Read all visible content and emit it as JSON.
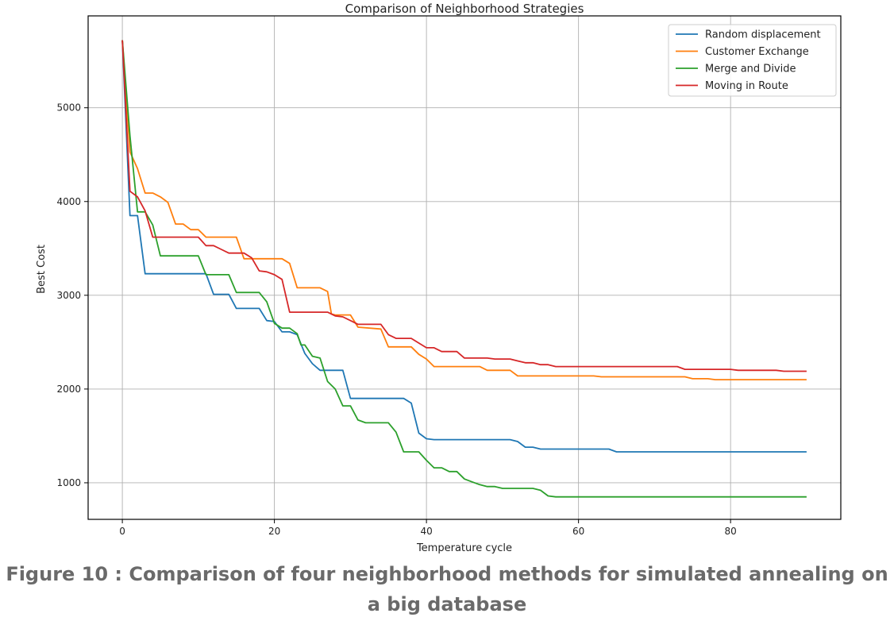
{
  "caption": "Figure 10 : Comparison of four neighborhood methods for simulated annealing on a big database",
  "chart_data": {
    "type": "line",
    "title": "Comparison of Neighborhood Strategies",
    "xlabel": "Temperature cycle",
    "ylabel": "Best Cost",
    "xlim": [
      -4.5,
      94.5
    ],
    "ylim": [
      610,
      5980
    ],
    "xticks": [
      0,
      20,
      40,
      60,
      80
    ],
    "yticks": [
      1000,
      2000,
      3000,
      4000,
      5000
    ],
    "grid": true,
    "legend_position": "top-right",
    "series": [
      {
        "name": "Random displacement",
        "color": "#1f77b4",
        "points": [
          [
            0,
            5720
          ],
          [
            1,
            3850
          ],
          [
            2,
            3850
          ],
          [
            3,
            3230
          ],
          [
            11,
            3230
          ],
          [
            12,
            3010
          ],
          [
            14,
            3010
          ],
          [
            15,
            2860
          ],
          [
            18,
            2860
          ],
          [
            19,
            2730
          ],
          [
            20,
            2720
          ],
          [
            21,
            2610
          ],
          [
            22,
            2610
          ],
          [
            23,
            2580
          ],
          [
            24,
            2380
          ],
          [
            25,
            2270
          ],
          [
            26,
            2200
          ],
          [
            29,
            2200
          ],
          [
            30,
            1900
          ],
          [
            37,
            1900
          ],
          [
            38,
            1850
          ],
          [
            39,
            1530
          ],
          [
            40,
            1470
          ],
          [
            41,
            1460
          ],
          [
            51,
            1460
          ],
          [
            52,
            1440
          ],
          [
            53,
            1380
          ],
          [
            54,
            1380
          ],
          [
            55,
            1360
          ],
          [
            64,
            1360
          ],
          [
            65,
            1330
          ],
          [
            90,
            1330
          ]
        ]
      },
      {
        "name": "Customer Exchange",
        "color": "#ff7f0e",
        "points": [
          [
            0,
            5720
          ],
          [
            1,
            4530
          ],
          [
            2,
            4350
          ],
          [
            3,
            4090
          ],
          [
            4,
            4090
          ],
          [
            5,
            4050
          ],
          [
            6,
            3990
          ],
          [
            7,
            3760
          ],
          [
            8,
            3760
          ],
          [
            9,
            3700
          ],
          [
            10,
            3700
          ],
          [
            11,
            3620
          ],
          [
            15,
            3620
          ],
          [
            16,
            3390
          ],
          [
            21,
            3390
          ],
          [
            22,
            3340
          ],
          [
            23,
            3080
          ],
          [
            26,
            3080
          ],
          [
            27,
            3040
          ],
          [
            27.5,
            2800
          ],
          [
            28,
            2790
          ],
          [
            30,
            2790
          ],
          [
            31,
            2660
          ],
          [
            34,
            2640
          ],
          [
            35,
            2450
          ],
          [
            38,
            2450
          ],
          [
            39,
            2370
          ],
          [
            40,
            2320
          ],
          [
            41,
            2240
          ],
          [
            47,
            2240
          ],
          [
            48,
            2200
          ],
          [
            51,
            2200
          ],
          [
            52,
            2140
          ],
          [
            62,
            2140
          ],
          [
            63,
            2130
          ],
          [
            74,
            2130
          ],
          [
            75,
            2110
          ],
          [
            77,
            2110
          ],
          [
            78,
            2100
          ],
          [
            90,
            2100
          ]
        ]
      },
      {
        "name": "Merge and Divide",
        "color": "#2ca02c",
        "points": [
          [
            0,
            5720
          ],
          [
            1,
            4700
          ],
          [
            2,
            3890
          ],
          [
            3,
            3890
          ],
          [
            4,
            3750
          ],
          [
            5,
            3420
          ],
          [
            10,
            3420
          ],
          [
            11,
            3220
          ],
          [
            14,
            3220
          ],
          [
            15,
            3030
          ],
          [
            18,
            3030
          ],
          [
            19,
            2930
          ],
          [
            20,
            2700
          ],
          [
            21,
            2650
          ],
          [
            22,
            2650
          ],
          [
            23,
            2590
          ],
          [
            23.5,
            2470
          ],
          [
            24,
            2470
          ],
          [
            25,
            2350
          ],
          [
            26,
            2330
          ],
          [
            27,
            2080
          ],
          [
            28,
            2000
          ],
          [
            29,
            1820
          ],
          [
            30,
            1820
          ],
          [
            31,
            1670
          ],
          [
            32,
            1640
          ],
          [
            35,
            1640
          ],
          [
            36,
            1540
          ],
          [
            37,
            1330
          ],
          [
            39,
            1330
          ],
          [
            40,
            1240
          ],
          [
            41,
            1160
          ],
          [
            42,
            1160
          ],
          [
            43,
            1120
          ],
          [
            44,
            1120
          ],
          [
            45,
            1040
          ],
          [
            46,
            1010
          ],
          [
            47,
            980
          ],
          [
            48,
            960
          ],
          [
            49,
            960
          ],
          [
            50,
            940
          ],
          [
            54,
            940
          ],
          [
            55,
            920
          ],
          [
            56,
            860
          ],
          [
            57,
            850
          ],
          [
            90,
            850
          ]
        ]
      },
      {
        "name": "Moving in Route",
        "color": "#d62728",
        "points": [
          [
            0,
            5720
          ],
          [
            1,
            4110
          ],
          [
            2,
            4050
          ],
          [
            3,
            3900
          ],
          [
            4,
            3620
          ],
          [
            10,
            3620
          ],
          [
            11,
            3530
          ],
          [
            12,
            3530
          ],
          [
            13,
            3490
          ],
          [
            14,
            3450
          ],
          [
            16,
            3450
          ],
          [
            17,
            3400
          ],
          [
            18,
            3260
          ],
          [
            19,
            3250
          ],
          [
            20,
            3220
          ],
          [
            21,
            3170
          ],
          [
            22,
            2820
          ],
          [
            27,
            2820
          ],
          [
            28,
            2780
          ],
          [
            29,
            2770
          ],
          [
            30,
            2730
          ],
          [
            31,
            2690
          ],
          [
            34,
            2690
          ],
          [
            35,
            2580
          ],
          [
            36,
            2540
          ],
          [
            38,
            2540
          ],
          [
            39,
            2490
          ],
          [
            40,
            2440
          ],
          [
            41,
            2440
          ],
          [
            42,
            2400
          ],
          [
            44,
            2400
          ],
          [
            45,
            2330
          ],
          [
            48,
            2330
          ],
          [
            49,
            2320
          ],
          [
            51,
            2320
          ],
          [
            52,
            2300
          ],
          [
            53,
            2280
          ],
          [
            54,
            2280
          ],
          [
            55,
            2260
          ],
          [
            56,
            2260
          ],
          [
            57,
            2240
          ],
          [
            73,
            2240
          ],
          [
            74,
            2210
          ],
          [
            80,
            2210
          ],
          [
            81,
            2200
          ],
          [
            86,
            2200
          ],
          [
            87,
            2190
          ],
          [
            90,
            2190
          ]
        ]
      }
    ]
  }
}
